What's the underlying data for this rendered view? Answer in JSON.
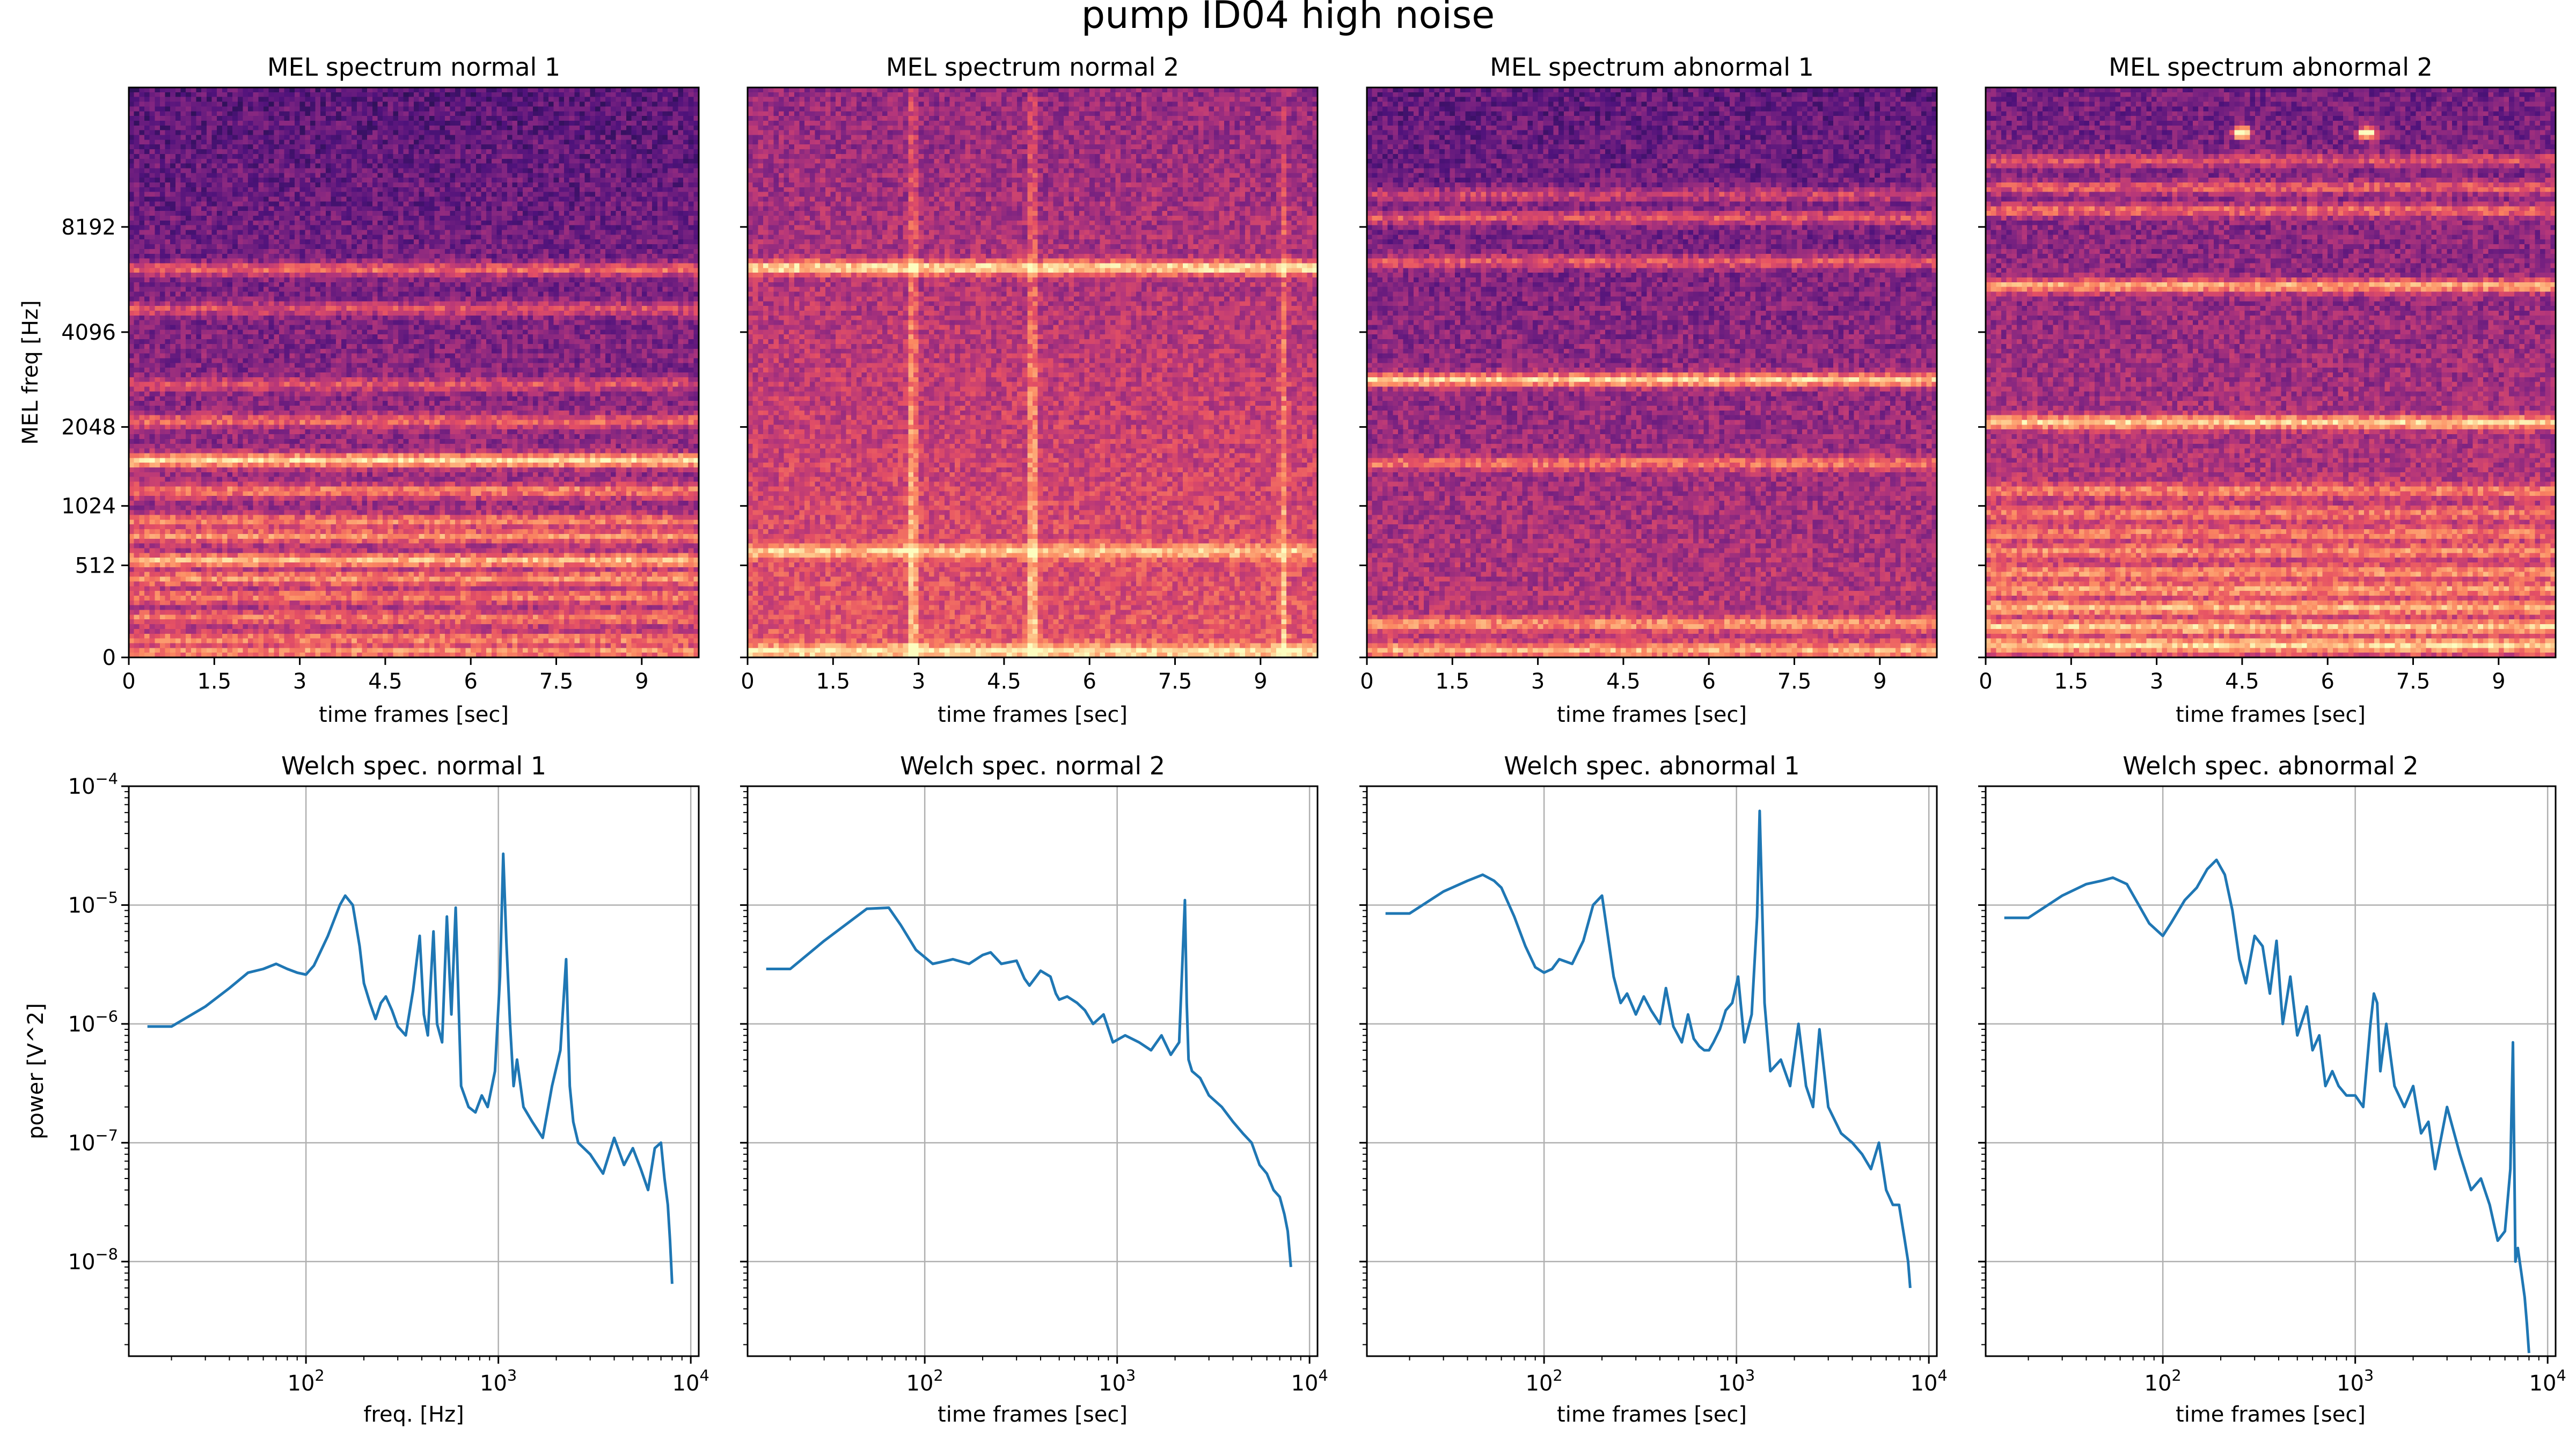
{
  "figure": {
    "title": "pump ID04 high noise"
  },
  "chart_data": [
    {
      "type": "heatmap",
      "title": "MEL spectrum normal 1",
      "xlabel": "time frames [sec]",
      "ylabel": "MEL freq [Hz]",
      "xlim": [
        0,
        10
      ],
      "xticks": [
        0,
        1.5,
        3,
        4.5,
        6,
        7.5,
        9
      ],
      "xtick_labels": [
        "0",
        "1.5",
        "3",
        "4.5",
        "6",
        "7.5",
        "9"
      ],
      "ytick_labels": [
        "0",
        "512",
        "1024",
        "2048",
        "4096",
        "8192"
      ],
      "yticks_mel": [
        0,
        607.4,
        999.5,
        1520.3,
        2146.1,
        2840.0
      ],
      "ylim_mel": [
        0,
        3760
      ],
      "colormap": "magma",
      "intensity": 0.5,
      "bands": [
        [
          40,
          0.5
        ],
        [
          120,
          0.45
        ],
        [
          260,
          0.42
        ],
        [
          400,
          0.45
        ],
        [
          520,
          0.55
        ],
        [
          640,
          0.72
        ],
        [
          800,
          0.58
        ],
        [
          900,
          0.52
        ],
        [
          1100,
          0.55
        ],
        [
          1300,
          0.95
        ],
        [
          1560,
          0.48
        ],
        [
          1800,
          0.4
        ],
        [
          2300,
          0.45
        ],
        [
          2560,
          0.6
        ]
      ],
      "vlines": [],
      "blobs": []
    },
    {
      "type": "heatmap",
      "title": "MEL spectrum normal 2",
      "xlabel": "time frames [sec]",
      "ylabel": "",
      "xlim": [
        0,
        10
      ],
      "xticks": [
        0,
        1.5,
        3,
        4.5,
        6,
        7.5,
        9
      ],
      "xtick_labels": [
        "0",
        "1.5",
        "3",
        "4.5",
        "6",
        "7.5",
        "9"
      ],
      "ytick_labels": [],
      "yticks_mel": [
        0,
        607.4,
        999.5,
        1520.3,
        2146.1,
        2840.0
      ],
      "ylim_mel": [
        0,
        3760
      ],
      "colormap": "magma",
      "intensity": 0.64,
      "bands": [
        [
          40,
          0.6
        ],
        [
          700,
          0.55
        ],
        [
          2570,
          0.82
        ]
      ],
      "vlines": [
        [
          2.9,
          0.75
        ],
        [
          5.0,
          0.75
        ],
        [
          9.4,
          0.5
        ]
      ],
      "blobs": []
    },
    {
      "type": "heatmap",
      "title": "MEL spectrum abnormal 1",
      "xlabel": "time frames [sec]",
      "ylabel": "",
      "xlim": [
        0,
        10
      ],
      "xticks": [
        0,
        1.5,
        3,
        4.5,
        6,
        7.5,
        9
      ],
      "xtick_labels": [
        "0",
        "1.5",
        "3",
        "4.5",
        "6",
        "7.5",
        "9"
      ],
      "ytick_labels": [],
      "yticks_mel": [
        0,
        607.4,
        999.5,
        1520.3,
        2146.1,
        2840.0
      ],
      "ylim_mel": [
        0,
        3760
      ],
      "colormap": "magma",
      "intensity": 0.52,
      "bands": [
        [
          50,
          0.6
        ],
        [
          220,
          0.5
        ],
        [
          1280,
          0.5
        ],
        [
          1830,
          0.9
        ],
        [
          2610,
          0.5
        ],
        [
          2900,
          0.5
        ],
        [
          3050,
          0.42
        ]
      ],
      "vlines": [],
      "blobs": []
    },
    {
      "type": "heatmap",
      "title": "MEL spectrum abnormal 2",
      "xlabel": "time frames [sec]",
      "ylabel": "",
      "xlim": [
        0,
        10
      ],
      "xticks": [
        0,
        1.5,
        3,
        4.5,
        6,
        7.5,
        9
      ],
      "xtick_labels": [
        "0",
        "1.5",
        "3",
        "4.5",
        "6",
        "7.5",
        "9"
      ],
      "ytick_labels": [],
      "yticks_mel": [
        0,
        607.4,
        999.5,
        1520.3,
        2146.1,
        2840.0
      ],
      "ylim_mel": [
        0,
        3760
      ],
      "colormap": "magma",
      "intensity": 0.56,
      "bands": [
        [
          80,
          0.65
        ],
        [
          200,
          0.6
        ],
        [
          330,
          0.55
        ],
        [
          450,
          0.5
        ],
        [
          560,
          0.45
        ],
        [
          700,
          0.45
        ],
        [
          820,
          0.4
        ],
        [
          950,
          0.4
        ],
        [
          1100,
          0.45
        ],
        [
          1550,
          0.8
        ],
        [
          2450,
          0.75
        ],
        [
          2950,
          0.55
        ],
        [
          3100,
          0.5
        ],
        [
          3280,
          0.45
        ]
      ],
      "vlines": [],
      "blobs": [
        [
          4.5,
          3460,
          0.9
        ],
        [
          6.7,
          3460,
          0.9
        ]
      ]
    },
    {
      "type": "line",
      "title": "Welch spec. normal 1",
      "xlabel": "freq. [Hz]",
      "ylabel": "power [V^2]",
      "xscale": "log",
      "yscale": "log",
      "xlim": [
        12,
        11000
      ],
      "ylim": [
        1.6e-09,
        0.0001
      ],
      "xtick_labels": [
        "10^2",
        "10^3",
        "10^4"
      ],
      "ytick_labels": [
        "10^-8",
        "10^-7",
        "10^-6",
        "10^-5",
        "10^-4"
      ],
      "grid": true,
      "series_color": "#1f77b4",
      "x": [
        15,
        20,
        30,
        40,
        50,
        60,
        70,
        80,
        90,
        100,
        110,
        130,
        150,
        160,
        175,
        190,
        200,
        215,
        230,
        245,
        260,
        280,
        300,
        330,
        360,
        390,
        410,
        430,
        460,
        480,
        510,
        540,
        570,
        600,
        640,
        700,
        760,
        820,
        880,
        960,
        1020,
        1060,
        1100,
        1150,
        1200,
        1250,
        1350,
        1500,
        1700,
        1900,
        2100,
        2250,
        2300,
        2350,
        2450,
        2600,
        3000,
        3500,
        4000,
        4500,
        5000,
        5500,
        6000,
        6500,
        7000,
        7300,
        7600,
        7800,
        8000
      ],
      "y": [
        9.5e-07,
        9.5e-07,
        1.4e-06,
        2e-06,
        2.7e-06,
        2.9e-06,
        3.2e-06,
        2.9e-06,
        2.7e-06,
        2.6e-06,
        3.1e-06,
        5.5e-06,
        1e-05,
        1.2e-05,
        1e-05,
        4.5e-06,
        2.2e-06,
        1.5e-06,
        1.1e-06,
        1.5e-06,
        1.7e-06,
        1.3e-06,
        9.5e-07,
        8e-07,
        1.9e-06,
        5.5e-06,
        1.2e-06,
        8e-07,
        6e-06,
        1e-06,
        7e-07,
        8e-06,
        1.2e-06,
        9.5e-06,
        3e-07,
        2e-07,
        1.8e-07,
        2.5e-07,
        2e-07,
        4e-07,
        2.5e-06,
        2.7e-05,
        5e-06,
        1e-06,
        3e-07,
        5e-07,
        2e-07,
        1.5e-07,
        1.1e-07,
        3e-07,
        6e-07,
        3.5e-06,
        1e-06,
        3e-07,
        1.5e-07,
        1e-07,
        8e-08,
        5.5e-08,
        1.1e-07,
        6.5e-08,
        9e-08,
        6e-08,
        4e-08,
        9e-08,
        1e-07,
        5e-08,
        3e-08,
        1.5e-08,
        6.5e-09
      ]
    },
    {
      "type": "line",
      "title": "Welch spec. normal 2",
      "xlabel": "time frames [sec]",
      "ylabel": "",
      "xscale": "log",
      "yscale": "log",
      "xlim": [
        12,
        11000
      ],
      "ylim": [
        1.6e-09,
        0.0001
      ],
      "xtick_labels": [
        "10^2",
        "10^3",
        "10^4"
      ],
      "ytick_labels": [],
      "grid": true,
      "series_color": "#1f77b4",
      "x": [
        15,
        20,
        30,
        50,
        65,
        75,
        90,
        110,
        120,
        140,
        170,
        200,
        220,
        250,
        300,
        330,
        350,
        400,
        450,
        480,
        500,
        550,
        620,
        680,
        750,
        850,
        950,
        1100,
        1300,
        1500,
        1700,
        1900,
        2100,
        2250,
        2300,
        2350,
        2450,
        2700,
        3000,
        3500,
        4000,
        4500,
        5000,
        5500,
        6000,
        6500,
        7000,
        7400,
        7700,
        8000
      ],
      "y": [
        2.9e-06,
        2.9e-06,
        5e-06,
        9.3e-06,
        9.5e-06,
        6.8e-06,
        4.2e-06,
        3.2e-06,
        3.3e-06,
        3.5e-06,
        3.2e-06,
        3.8e-06,
        4e-06,
        3.2e-06,
        3.4e-06,
        2.4e-06,
        2.1e-06,
        2.8e-06,
        2.5e-06,
        1.8e-06,
        1.6e-06,
        1.7e-06,
        1.5e-06,
        1.3e-06,
        1e-06,
        1.2e-06,
        7e-07,
        8e-07,
        7e-07,
        6e-07,
        8e-07,
        5.5e-07,
        7e-07,
        1.1e-05,
        1.5e-06,
        5e-07,
        4e-07,
        3.5e-07,
        2.5e-07,
        2e-07,
        1.5e-07,
        1.2e-07,
        1e-07,
        6.5e-08,
        5.5e-08,
        4e-08,
        3.5e-08,
        2.5e-08,
        1.8e-08,
        9e-09
      ]
    },
    {
      "type": "line",
      "title": "Welch spec. abnormal 1",
      "xlabel": "time frames [sec]",
      "ylabel": "",
      "xscale": "log",
      "yscale": "log",
      "xlim": [
        12,
        11000
      ],
      "ylim": [
        1.6e-09,
        0.0001
      ],
      "xtick_labels": [
        "10^2",
        "10^3",
        "10^4"
      ],
      "ytick_labels": [],
      "grid": true,
      "series_color": "#1f77b4",
      "x": [
        15,
        20,
        30,
        40,
        48,
        55,
        60,
        70,
        80,
        90,
        100,
        110,
        120,
        140,
        160,
        180,
        200,
        210,
        230,
        250,
        270,
        300,
        330,
        360,
        400,
        430,
        470,
        520,
        560,
        600,
        640,
        680,
        720,
        760,
        820,
        880,
        950,
        1020,
        1100,
        1200,
        1280,
        1320,
        1360,
        1400,
        1500,
        1700,
        1900,
        2100,
        2300,
        2500,
        2700,
        3000,
        3500,
        4000,
        4500,
        5000,
        5500,
        6000,
        6500,
        7000,
        7500,
        7800,
        8000
      ],
      "y": [
        8.5e-06,
        8.5e-06,
        1.3e-05,
        1.6e-05,
        1.8e-05,
        1.6e-05,
        1.4e-05,
        8e-06,
        4.5e-06,
        3e-06,
        2.7e-06,
        2.9e-06,
        3.5e-06,
        3.2e-06,
        5e-06,
        1e-05,
        1.2e-05,
        7e-06,
        2.5e-06,
        1.5e-06,
        1.8e-06,
        1.2e-06,
        1.7e-06,
        1.3e-06,
        1e-06,
        2e-06,
        9.5e-07,
        7e-07,
        1.2e-06,
        7.5e-07,
        6.5e-07,
        6e-07,
        6e-07,
        7e-07,
        9e-07,
        1.3e-06,
        1.5e-06,
        2.5e-06,
        7e-07,
        1.2e-06,
        8e-06,
        6.2e-05,
        1e-05,
        1.5e-06,
        4e-07,
        5e-07,
        3e-07,
        1e-06,
        3e-07,
        2e-07,
        9e-07,
        2e-07,
        1.2e-07,
        1e-07,
        8e-08,
        6e-08,
        1e-07,
        4e-08,
        3e-08,
        3e-08,
        1.5e-08,
        1e-08,
        6e-09
      ]
    },
    {
      "type": "line",
      "title": "Welch spec. abnormal 2",
      "xlabel": "time frames [sec]",
      "ylabel": "",
      "xscale": "log",
      "yscale": "log",
      "xlim": [
        12,
        11000
      ],
      "ylim": [
        1.6e-09,
        0.0001
      ],
      "xtick_labels": [
        "10^2",
        "10^3",
        "10^4"
      ],
      "ytick_labels": [],
      "grid": true,
      "series_color": "#1f77b4",
      "x": [
        15,
        20,
        30,
        40,
        48,
        55,
        65,
        75,
        85,
        100,
        110,
        130,
        150,
        170,
        190,
        210,
        230,
        250,
        270,
        300,
        330,
        360,
        390,
        420,
        460,
        500,
        560,
        600,
        650,
        700,
        760,
        820,
        900,
        1000,
        1100,
        1200,
        1250,
        1300,
        1350,
        1450,
        1600,
        1800,
        2000,
        2200,
        2400,
        2600,
        3000,
        3500,
        4000,
        4500,
        5000,
        5500,
        6000,
        6400,
        6600,
        6800,
        7000,
        7300,
        7600,
        7800,
        8000
      ],
      "y": [
        7.8e-06,
        7.8e-06,
        1.2e-05,
        1.5e-05,
        1.6e-05,
        1.7e-05,
        1.5e-05,
        1e-05,
        7e-06,
        5.5e-06,
        7e-06,
        1.1e-05,
        1.4e-05,
        2e-05,
        2.4e-05,
        1.8e-05,
        9e-06,
        3.5e-06,
        2.2e-06,
        5.5e-06,
        4.5e-06,
        1.8e-06,
        5e-06,
        1e-06,
        2.5e-06,
        8e-07,
        1.4e-06,
        6e-07,
        8e-07,
        3e-07,
        4e-07,
        3e-07,
        2.5e-07,
        2.5e-07,
        2e-07,
        1e-06,
        1.8e-06,
        1.5e-06,
        4e-07,
        1e-06,
        3e-07,
        2e-07,
        3e-07,
        1.2e-07,
        1.5e-07,
        6e-08,
        2e-07,
        8e-08,
        4e-08,
        5e-08,
        3e-08,
        1.5e-08,
        1.8e-08,
        6e-08,
        7e-07,
        1e-08,
        1.3e-08,
        8e-09,
        5e-09,
        3e-09,
        1.7e-09
      ]
    }
  ]
}
